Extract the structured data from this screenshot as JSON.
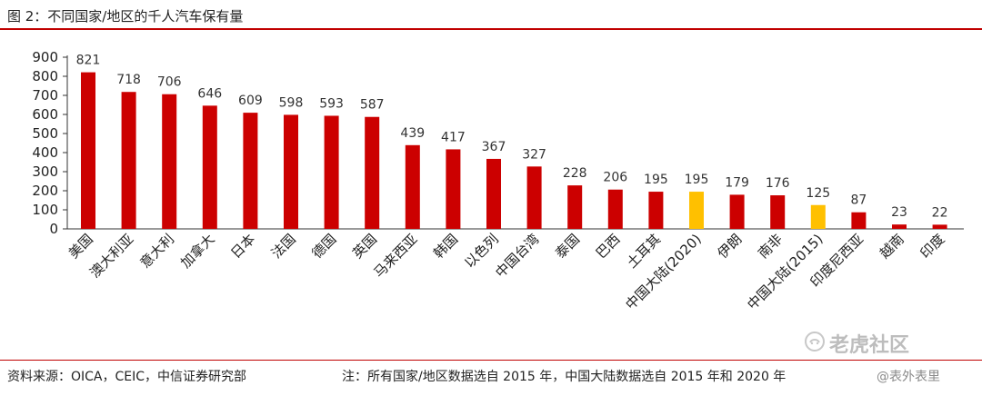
{
  "title": "图 2：不同国家/地区的千人汽车保有量",
  "footer": {
    "source": "资料来源：OICA，CEIC，中信证券研究部",
    "note": "注：所有国家/地区数据选自 2015 年，中国大陆数据选自 2015 年和 2020 年"
  },
  "watermark": {
    "main": "老虎社区",
    "sub": "@表外表里",
    "icon": "tiger-community-logo-icon"
  },
  "colors": {
    "bar": "#cc0000",
    "highlight": "#ffc000",
    "axis": "#333333",
    "rule": "#c00000"
  },
  "chart_data": {
    "type": "bar",
    "title": "",
    "xlabel": "",
    "ylabel": "",
    "ylim": [
      0,
      900
    ],
    "yticks": [
      0,
      100,
      200,
      300,
      400,
      500,
      600,
      700,
      800,
      900
    ],
    "grid": false,
    "legend": "none",
    "categories": [
      "美国",
      "澳大利亚",
      "意大利",
      "加拿大",
      "日本",
      "法国",
      "德国",
      "英国",
      "马来西亚",
      "韩国",
      "以色列",
      "中国台湾",
      "泰国",
      "巴西",
      "土耳其",
      "中国大陆(2020)",
      "伊朗",
      "南非",
      "中国大陆(2015)",
      "印度尼西亚",
      "越南",
      "印度"
    ],
    "values": [
      821,
      718,
      706,
      646,
      609,
      598,
      593,
      587,
      439,
      417,
      367,
      327,
      228,
      206,
      195,
      195,
      179,
      176,
      125,
      87,
      23,
      22
    ],
    "highlight": [
      "中国大陆(2020)",
      "中国大陆(2015)"
    ]
  }
}
